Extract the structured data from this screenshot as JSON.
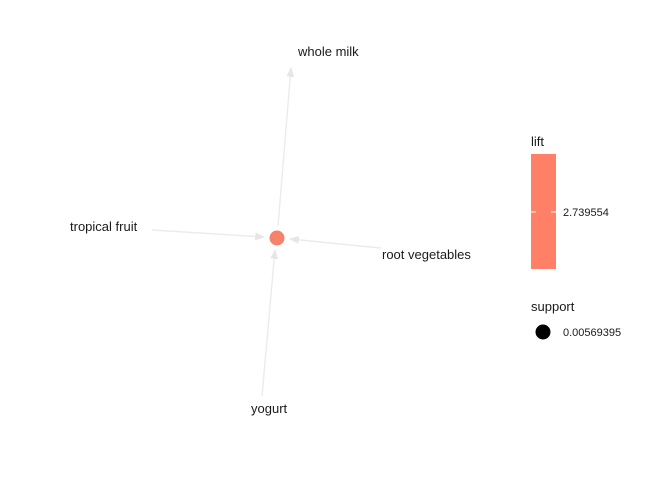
{
  "graph": {
    "items": [
      "whole milk",
      "tropical fruit",
      "root vegetables",
      "yogurt"
    ],
    "rule_node_color": "#F7826C",
    "edge_color": "#EBEBEB",
    "edges": [
      {
        "from": "tropical fruit",
        "to": "rule"
      },
      {
        "from": "root vegetables",
        "to": "rule"
      },
      {
        "from": "yogurt",
        "to": "rule"
      },
      {
        "from": "rule",
        "to": "whole milk"
      }
    ]
  },
  "legend": {
    "lift": {
      "title": "lift",
      "value": "2.739554",
      "color": "#FF8066"
    },
    "support": {
      "title": "support",
      "value": "0.00569395",
      "color": "#000000"
    }
  }
}
